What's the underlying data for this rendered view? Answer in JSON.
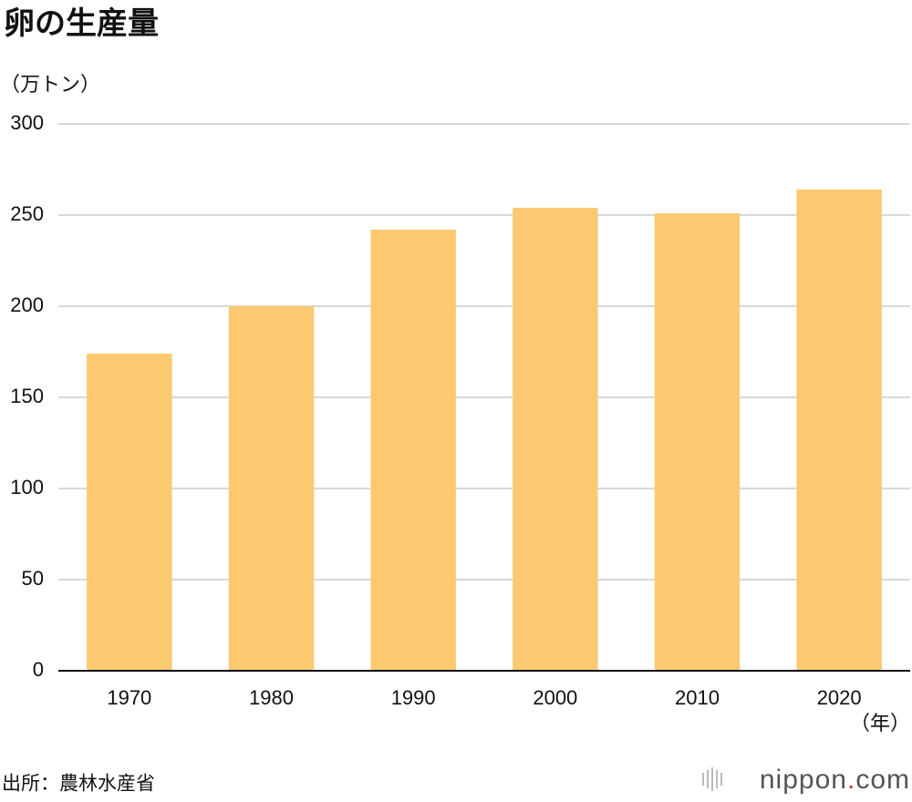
{
  "chart_data": {
    "type": "bar",
    "title": "卵の生産量",
    "y_label": "（万トン）",
    "x_label": "（年）",
    "categories": [
      "1970",
      "1980",
      "1990",
      "2000",
      "2010",
      "2020"
    ],
    "values": [
      174,
      200,
      242,
      254,
      251,
      264
    ],
    "color": "#fcc870",
    "ylim": [
      0,
      300
    ],
    "yticks": [
      0,
      50,
      100,
      150,
      200,
      250,
      300
    ],
    "grid": true,
    "source": "出所：農林水産省",
    "logo": {
      "name": "nippon",
      "dot": ".",
      "tld": "com"
    }
  }
}
